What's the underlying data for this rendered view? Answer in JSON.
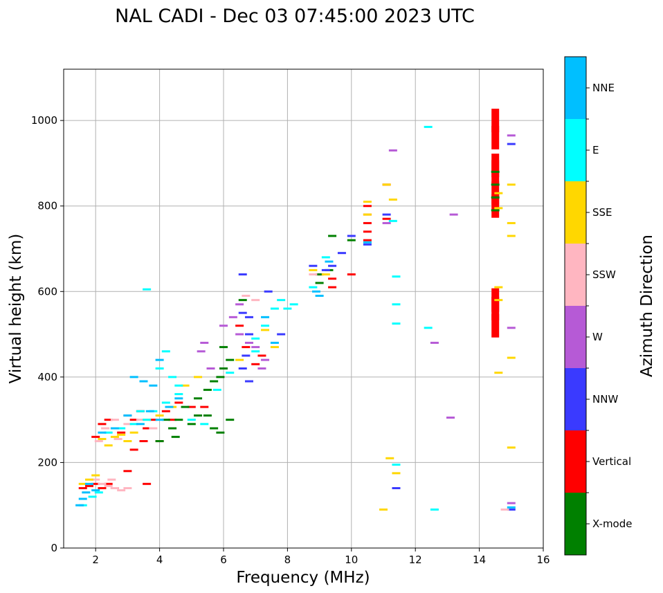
{
  "chart_data": {
    "type": "scatter",
    "title": "NAL CADI - Dec 03 07:45:00 2023 UTC",
    "xlabel": "Frequency (MHz)",
    "ylabel": "Virtual height (km)",
    "xlim": [
      1,
      16
    ],
    "ylim": [
      0,
      1120
    ],
    "xticks": [
      "2",
      "4",
      "6",
      "8",
      "10",
      "12",
      "14",
      "16"
    ],
    "yticks": [
      "0",
      "200",
      "400",
      "600",
      "800",
      "1000"
    ],
    "grid": true,
    "colorbar": {
      "label": "Azimuth Direction",
      "categories": [
        {
          "name": "X-mode",
          "color": "#008000"
        },
        {
          "name": "Vertical",
          "color": "#ff0000"
        },
        {
          "name": "NNW",
          "color": "#3a3aff"
        },
        {
          "name": "W",
          "color": "#b65ad6"
        },
        {
          "name": "SSW",
          "color": "#ffb6c1"
        },
        {
          "name": "SSE",
          "color": "#ffd700"
        },
        {
          "name": "E",
          "color": "#00ffff"
        },
        {
          "name": "NNE",
          "color": "#00bfff"
        }
      ]
    },
    "series": [
      {
        "name": "Vertical",
        "color": "#ff0000",
        "points": [
          [
            1.6,
            140
          ],
          [
            1.8,
            145
          ],
          [
            2.0,
            150
          ],
          [
            2.2,
            140
          ],
          [
            2.4,
            150
          ],
          [
            2.6,
            140
          ],
          [
            2.0,
            260
          ],
          [
            2.2,
            290
          ],
          [
            2.4,
            300
          ],
          [
            2.6,
            280
          ],
          [
            2.8,
            270
          ],
          [
            3.0,
            310
          ],
          [
            3.2,
            300
          ],
          [
            3.4,
            320
          ],
          [
            3.6,
            280
          ],
          [
            3.8,
            300
          ],
          [
            3.2,
            230
          ],
          [
            3.5,
            250
          ],
          [
            4.0,
            250
          ],
          [
            4.2,
            320
          ],
          [
            4.4,
            300
          ],
          [
            4.6,
            340
          ],
          [
            3.6,
            150
          ],
          [
            3.0,
            180
          ],
          [
            5.0,
            330
          ],
          [
            5.4,
            330
          ],
          [
            6.5,
            520
          ],
          [
            6.7,
            470
          ],
          [
            7.2,
            450
          ],
          [
            7.0,
            430
          ],
          [
            9.0,
            640
          ],
          [
            9.4,
            630
          ],
          [
            9.4,
            610
          ],
          [
            10.0,
            640
          ],
          [
            10.5,
            800
          ],
          [
            10.5,
            780
          ],
          [
            10.5,
            760
          ],
          [
            10.5,
            740
          ],
          [
            10.5,
            720
          ],
          [
            11.1,
            850
          ],
          [
            11.1,
            770
          ],
          [
            14.5,
            895
          ],
          [
            14.5,
            880
          ],
          [
            14.5,
            1000
          ],
          [
            14.5,
            960
          ],
          [
            14.5,
            830
          ],
          [
            14.5,
            800
          ],
          [
            14.5,
            560
          ],
          [
            14.5,
            520
          ],
          [
            14.5,
            580
          ]
        ]
      },
      {
        "name": "X-mode",
        "color": "#008000",
        "points": [
          [
            4.0,
            250
          ],
          [
            4.5,
            260
          ],
          [
            5.0,
            290
          ],
          [
            5.2,
            310
          ],
          [
            5.5,
            310
          ],
          [
            5.7,
            280
          ],
          [
            5.9,
            270
          ],
          [
            4.8,
            330
          ],
          [
            5.2,
            350
          ],
          [
            5.5,
            370
          ],
          [
            5.7,
            390
          ],
          [
            5.9,
            400
          ],
          [
            6.0,
            420
          ],
          [
            6.2,
            440
          ],
          [
            6.0,
            470
          ],
          [
            6.6,
            580
          ],
          [
            6.2,
            300
          ],
          [
            9.0,
            620
          ],
          [
            9.0,
            640
          ],
          [
            9.3,
            650
          ],
          [
            9.4,
            730
          ],
          [
            10.0,
            720
          ],
          [
            14.5,
            880
          ],
          [
            14.5,
            850
          ],
          [
            14.5,
            820
          ],
          [
            14.5,
            790
          ],
          [
            4.2,
            300
          ],
          [
            4.4,
            280
          ],
          [
            4.6,
            300
          ]
        ]
      },
      {
        "name": "NNW",
        "color": "#3a3aff",
        "points": [
          [
            6.6,
            640
          ],
          [
            6.8,
            500
          ],
          [
            6.6,
            550
          ],
          [
            6.8,
            540
          ],
          [
            6.6,
            420
          ],
          [
            6.7,
            450
          ],
          [
            6.8,
            390
          ],
          [
            7.4,
            600
          ],
          [
            7.8,
            500
          ],
          [
            8.8,
            660
          ],
          [
            9.2,
            650
          ],
          [
            9.4,
            660
          ],
          [
            9.7,
            690
          ],
          [
            10.0,
            730
          ],
          [
            10.5,
            710
          ],
          [
            11.1,
            780
          ],
          [
            11.4,
            140
          ],
          [
            15.0,
            945
          ],
          [
            15.0,
            90
          ]
        ]
      },
      {
        "name": "W",
        "color": "#b65ad6",
        "points": [
          [
            6.5,
            500
          ],
          [
            6.8,
            480
          ],
          [
            7.0,
            470
          ],
          [
            6.5,
            570
          ],
          [
            7.2,
            420
          ],
          [
            7.3,
            440
          ],
          [
            11.1,
            760
          ],
          [
            11.3,
            930
          ],
          [
            13.2,
            780
          ],
          [
            12.6,
            480
          ],
          [
            13.1,
            305
          ],
          [
            15.0,
            965
          ],
          [
            15.0,
            515
          ],
          [
            15.0,
            105
          ],
          [
            5.4,
            480
          ],
          [
            5.3,
            460
          ],
          [
            5.6,
            420
          ],
          [
            6.0,
            520
          ],
          [
            6.3,
            540
          ]
        ]
      },
      {
        "name": "SSW",
        "color": "#ffb6c1",
        "points": [
          [
            2.0,
            160
          ],
          [
            2.2,
            150
          ],
          [
            2.4,
            145
          ],
          [
            2.6,
            140
          ],
          [
            2.8,
            135
          ],
          [
            3.0,
            140
          ],
          [
            2.5,
            160
          ],
          [
            2.3,
            280
          ],
          [
            2.6,
            300
          ],
          [
            3.0,
            290
          ],
          [
            3.4,
            300
          ],
          [
            3.8,
            280
          ],
          [
            6.7,
            590
          ],
          [
            7.0,
            580
          ],
          [
            8.8,
            640
          ],
          [
            14.8,
            90
          ],
          [
            2.1,
            250
          ],
          [
            2.7,
            255
          ]
        ]
      },
      {
        "name": "SSE",
        "color": "#ffd700",
        "points": [
          [
            1.6,
            150
          ],
          [
            1.8,
            160
          ],
          [
            2.0,
            170
          ],
          [
            2.2,
            255
          ],
          [
            2.4,
            240
          ],
          [
            2.6,
            260
          ],
          [
            2.8,
            265
          ],
          [
            3.0,
            250
          ],
          [
            3.2,
            270
          ],
          [
            3.6,
            300
          ],
          [
            4.0,
            310
          ],
          [
            4.4,
            330
          ],
          [
            4.8,
            380
          ],
          [
            5.2,
            400
          ],
          [
            6.5,
            440
          ],
          [
            7.3,
            510
          ],
          [
            7.6,
            470
          ],
          [
            8.8,
            650
          ],
          [
            9.2,
            640
          ],
          [
            10.5,
            810
          ],
          [
            10.5,
            780
          ],
          [
            11.1,
            850
          ],
          [
            11.3,
            815
          ],
          [
            11.2,
            210
          ],
          [
            11.4,
            175
          ],
          [
            11.0,
            90
          ],
          [
            14.6,
            830
          ],
          [
            14.6,
            795
          ],
          [
            14.6,
            610
          ],
          [
            14.6,
            580
          ],
          [
            14.6,
            410
          ],
          [
            15.0,
            850
          ],
          [
            15.0,
            760
          ],
          [
            15.0,
            730
          ],
          [
            15.0,
            445
          ],
          [
            15.0,
            235
          ]
        ]
      },
      {
        "name": "E",
        "color": "#00ffff",
        "points": [
          [
            1.6,
            100
          ],
          [
            1.9,
            120
          ],
          [
            2.1,
            130
          ],
          [
            2.4,
            270
          ],
          [
            2.8,
            280
          ],
          [
            3.2,
            290
          ],
          [
            3.4,
            320
          ],
          [
            3.6,
            300
          ],
          [
            3.8,
            320
          ],
          [
            4.2,
            340
          ],
          [
            4.6,
            360
          ],
          [
            5.0,
            300
          ],
          [
            5.4,
            290
          ],
          [
            5.8,
            370
          ],
          [
            6.2,
            410
          ],
          [
            7.0,
            490
          ],
          [
            7.3,
            520
          ],
          [
            7.6,
            560
          ],
          [
            7.8,
            580
          ],
          [
            8.0,
            560
          ],
          [
            8.2,
            570
          ],
          [
            8.8,
            610
          ],
          [
            9.2,
            680
          ],
          [
            11.4,
            635
          ],
          [
            11.4,
            570
          ],
          [
            11.4,
            525
          ],
          [
            11.4,
            195
          ],
          [
            11.3,
            765
          ],
          [
            12.4,
            985
          ],
          [
            12.4,
            515
          ],
          [
            12.6,
            90
          ],
          [
            3.6,
            605
          ],
          [
            4.2,
            460
          ],
          [
            4.0,
            420
          ],
          [
            4.4,
            400
          ],
          [
            4.6,
            380
          ],
          [
            7.0,
            460
          ]
        ]
      },
      {
        "name": "NNE",
        "color": "#00bfff",
        "points": [
          [
            1.5,
            100
          ],
          [
            1.6,
            115
          ],
          [
            1.7,
            130
          ],
          [
            1.8,
            150
          ],
          [
            2.0,
            135
          ],
          [
            2.2,
            270
          ],
          [
            2.6,
            280
          ],
          [
            3.0,
            310
          ],
          [
            3.4,
            290
          ],
          [
            3.7,
            320
          ],
          [
            4.0,
            300
          ],
          [
            4.3,
            330
          ],
          [
            4.6,
            350
          ],
          [
            3.2,
            400
          ],
          [
            3.5,
            390
          ],
          [
            3.8,
            380
          ],
          [
            4.0,
            440
          ],
          [
            7.3,
            540
          ],
          [
            7.6,
            480
          ],
          [
            8.9,
            600
          ],
          [
            9.0,
            590
          ],
          [
            9.3,
            670
          ],
          [
            10.5,
            715
          ],
          [
            15.0,
            95
          ]
        ]
      }
    ]
  }
}
